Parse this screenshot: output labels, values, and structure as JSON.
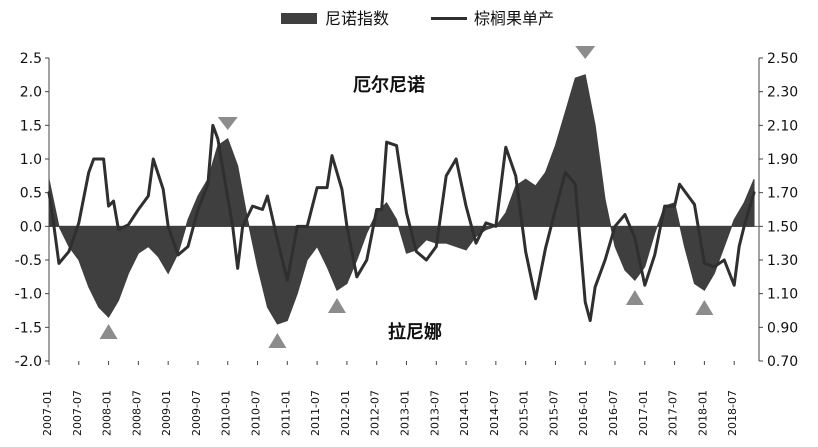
{
  "chart_data": {
    "type": "line",
    "title": "",
    "xlabel": "",
    "ylabel": "",
    "ylim": [
      -2.0,
      2.5
    ],
    "y2lim": [
      0.7,
      2.5
    ],
    "y_ticks": [
      "-2.0",
      "-1.5",
      "-1.0",
      "-0.5",
      "0.0",
      "0.5",
      "1.0",
      "1.5",
      "2.0",
      "2.5"
    ],
    "y2_ticks": [
      "0.70",
      "0.90",
      "1.10",
      "1.30",
      "1.50",
      "1.70",
      "1.90",
      "2.10",
      "2.30",
      "2.50"
    ],
    "x_labels": [
      "2007-01",
      "2007-07",
      "2008-01",
      "2008-07",
      "2009-01",
      "2009-07",
      "2010-01",
      "2010-07",
      "2011-01",
      "2011-07",
      "2012-01",
      "2012-07",
      "2013-01",
      "2013-07",
      "2014-01",
      "2014-07",
      "2015-01",
      "2015-07",
      "2016-01",
      "2016-07",
      "2017-01",
      "2017-07",
      "2018-01",
      "2018-07"
    ],
    "legend": {
      "placement": "top-center",
      "items": [
        "尼诺指数",
        "棕榈果单产"
      ]
    },
    "annotations": {
      "el_nino": "厄尔尼诺",
      "la_nina": "拉尼娜"
    },
    "series": [
      {
        "name": "尼诺指数",
        "kind": "area",
        "axis": "left",
        "color": "#3f3f3f",
        "points": [
          [
            "2007-01",
            0.7
          ],
          [
            "2007-03",
            0.0
          ],
          [
            "2007-05",
            -0.3
          ],
          [
            "2007-07",
            -0.5
          ],
          [
            "2007-09",
            -0.9
          ],
          [
            "2007-11",
            -1.2
          ],
          [
            "2008-01",
            -1.35
          ],
          [
            "2008-03",
            -1.1
          ],
          [
            "2008-05",
            -0.7
          ],
          [
            "2008-07",
            -0.4
          ],
          [
            "2008-09",
            -0.3
          ],
          [
            "2008-11",
            -0.45
          ],
          [
            "2009-01",
            -0.7
          ],
          [
            "2009-03",
            -0.4
          ],
          [
            "2009-05",
            0.1
          ],
          [
            "2009-07",
            0.45
          ],
          [
            "2009-09",
            0.7
          ],
          [
            "2009-11",
            1.2
          ],
          [
            "2010-01",
            1.3
          ],
          [
            "2010-03",
            0.9
          ],
          [
            "2010-05",
            0.1
          ],
          [
            "2010-07",
            -0.6
          ],
          [
            "2010-09",
            -1.2
          ],
          [
            "2010-11",
            -1.45
          ],
          [
            "2011-01",
            -1.4
          ],
          [
            "2011-03",
            -1.0
          ],
          [
            "2011-05",
            -0.5
          ],
          [
            "2011-07",
            -0.3
          ],
          [
            "2011-09",
            -0.6
          ],
          [
            "2011-11",
            -0.95
          ],
          [
            "2012-01",
            -0.85
          ],
          [
            "2012-03",
            -0.5
          ],
          [
            "2012-05",
            -0.1
          ],
          [
            "2012-07",
            0.2
          ],
          [
            "2012-09",
            0.35
          ],
          [
            "2012-11",
            0.1
          ],
          [
            "2013-01",
            -0.4
          ],
          [
            "2013-03",
            -0.35
          ],
          [
            "2013-05",
            -0.2
          ],
          [
            "2013-07",
            -0.25
          ],
          [
            "2013-09",
            -0.25
          ],
          [
            "2013-11",
            -0.3
          ],
          [
            "2014-01",
            -0.35
          ],
          [
            "2014-03",
            -0.15
          ],
          [
            "2014-05",
            -0.05
          ],
          [
            "2014-07",
            0.0
          ],
          [
            "2014-09",
            0.2
          ],
          [
            "2014-11",
            0.6
          ],
          [
            "2015-01",
            0.7
          ],
          [
            "2015-03",
            0.6
          ],
          [
            "2015-05",
            0.8
          ],
          [
            "2015-07",
            1.2
          ],
          [
            "2015-09",
            1.7
          ],
          [
            "2015-11",
            2.2
          ],
          [
            "2016-01",
            2.25
          ],
          [
            "2016-03",
            1.5
          ],
          [
            "2016-05",
            0.4
          ],
          [
            "2016-07",
            -0.3
          ],
          [
            "2016-09",
            -0.65
          ],
          [
            "2016-11",
            -0.8
          ],
          [
            "2017-01",
            -0.6
          ],
          [
            "2017-03",
            -0.1
          ],
          [
            "2017-05",
            0.3
          ],
          [
            "2017-07",
            0.35
          ],
          [
            "2017-09",
            -0.3
          ],
          [
            "2017-11",
            -0.85
          ],
          [
            "2018-01",
            -0.95
          ],
          [
            "2018-03",
            -0.7
          ],
          [
            "2018-05",
            -0.3
          ],
          [
            "2018-07",
            0.1
          ],
          [
            "2018-09",
            0.35
          ],
          [
            "2018-11",
            0.7
          ]
        ]
      },
      {
        "name": "棕榈果单产",
        "kind": "line",
        "axis": "right",
        "color": "#2f2f2f",
        "points": [
          [
            "2007-01",
            1.7
          ],
          [
            "2007-02",
            1.5
          ],
          [
            "2007-03",
            1.28
          ],
          [
            "2007-05",
            1.35
          ],
          [
            "2007-07",
            1.52
          ],
          [
            "2007-09",
            1.82
          ],
          [
            "2007-10",
            1.9
          ],
          [
            "2007-12",
            1.9
          ],
          [
            "2008-01",
            1.62
          ],
          [
            "2008-02",
            1.65
          ],
          [
            "2008-03",
            1.48
          ],
          [
            "2008-05",
            1.51
          ],
          [
            "2008-07",
            1.6
          ],
          [
            "2008-09",
            1.68
          ],
          [
            "2008-10",
            1.9
          ],
          [
            "2008-12",
            1.72
          ],
          [
            "2009-01",
            1.5
          ],
          [
            "2009-03",
            1.33
          ],
          [
            "2009-05",
            1.38
          ],
          [
            "2009-07",
            1.6
          ],
          [
            "2009-09",
            1.75
          ],
          [
            "2009-10",
            2.1
          ],
          [
            "2009-11",
            2.02
          ],
          [
            "2010-01",
            1.67
          ],
          [
            "2010-02",
            1.5
          ],
          [
            "2010-03",
            1.25
          ],
          [
            "2010-04",
            1.5
          ],
          [
            "2010-06",
            1.62
          ],
          [
            "2010-08",
            1.6
          ],
          [
            "2010-09",
            1.68
          ],
          [
            "2010-11",
            1.42
          ],
          [
            "2011-01",
            1.18
          ],
          [
            "2011-03",
            1.5
          ],
          [
            "2011-05",
            1.5
          ],
          [
            "2011-07",
            1.73
          ],
          [
            "2011-09",
            1.73
          ],
          [
            "2011-10",
            1.92
          ],
          [
            "2011-12",
            1.72
          ],
          [
            "2012-01",
            1.5
          ],
          [
            "2012-03",
            1.2
          ],
          [
            "2012-05",
            1.3
          ],
          [
            "2012-07",
            1.6
          ],
          [
            "2012-08",
            1.6
          ],
          [
            "2012-09",
            2.0
          ],
          [
            "2012-11",
            1.98
          ],
          [
            "2013-01",
            1.58
          ],
          [
            "2013-03",
            1.35
          ],
          [
            "2013-05",
            1.3
          ],
          [
            "2013-07",
            1.38
          ],
          [
            "2013-09",
            1.8
          ],
          [
            "2013-11",
            1.9
          ],
          [
            "2014-01",
            1.62
          ],
          [
            "2014-03",
            1.4
          ],
          [
            "2014-05",
            1.52
          ],
          [
            "2014-07",
            1.5
          ],
          [
            "2014-09",
            1.97
          ],
          [
            "2014-11",
            1.8
          ],
          [
            "2015-01",
            1.35
          ],
          [
            "2015-03",
            1.07
          ],
          [
            "2015-05",
            1.37
          ],
          [
            "2015-07",
            1.6
          ],
          [
            "2015-09",
            1.82
          ],
          [
            "2015-11",
            1.75
          ],
          [
            "2016-01",
            1.05
          ],
          [
            "2016-02",
            0.94
          ],
          [
            "2016-03",
            1.14
          ],
          [
            "2016-05",
            1.3
          ],
          [
            "2016-07",
            1.5
          ],
          [
            "2016-09",
            1.57
          ],
          [
            "2016-11",
            1.43
          ],
          [
            "2017-01",
            1.15
          ],
          [
            "2017-03",
            1.33
          ],
          [
            "2017-05",
            1.62
          ],
          [
            "2017-07",
            1.62
          ],
          [
            "2017-08",
            1.75
          ],
          [
            "2017-10",
            1.67
          ],
          [
            "2017-11",
            1.63
          ],
          [
            "2018-01",
            1.28
          ],
          [
            "2018-03",
            1.26
          ],
          [
            "2018-05",
            1.3
          ],
          [
            "2018-07",
            1.15
          ],
          [
            "2018-08",
            1.38
          ],
          [
            "2018-09",
            1.5
          ],
          [
            "2018-11",
            1.7
          ]
        ]
      }
    ],
    "markers": [
      {
        "date": "2008-01",
        "direction": "up",
        "color": "#8c8c8c"
      },
      {
        "date": "2010-01",
        "direction": "down",
        "color": "#8c8c8c"
      },
      {
        "date": "2010-11",
        "direction": "up",
        "color": "#8c8c8c"
      },
      {
        "date": "2011-11",
        "direction": "up",
        "color": "#8c8c8c"
      },
      {
        "date": "2016-01",
        "direction": "down",
        "color": "#8c8c8c"
      },
      {
        "date": "2016-11",
        "direction": "up",
        "color": "#8c8c8c"
      },
      {
        "date": "2018-01",
        "direction": "up",
        "color": "#8c8c8c"
      }
    ]
  }
}
